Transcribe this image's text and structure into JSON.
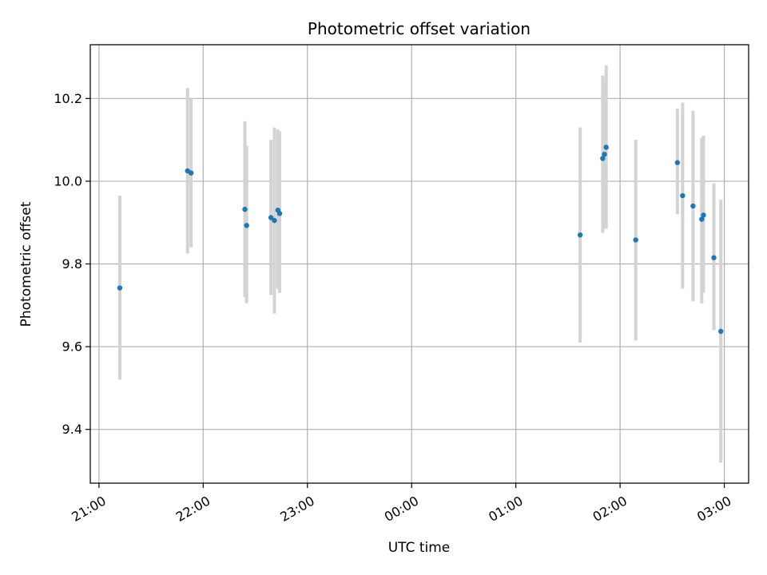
{
  "chart_data": {
    "type": "scatter",
    "title": "Photometric offset variation",
    "xlabel": "UTC time",
    "ylabel": "Photometric offset",
    "grid": true,
    "x_unit": "UTC time (HH:MM)",
    "xlim": [
      "20:55",
      "03:14"
    ],
    "ylim": [
      9.27,
      10.33
    ],
    "xticks": [
      "21:00",
      "22:00",
      "23:00",
      "00:00",
      "01:00",
      "02:00",
      "03:00"
    ],
    "yticks": [
      9.4,
      9.6,
      9.8,
      10.0,
      10.2
    ],
    "colors": {
      "point": "#1f77b4",
      "errorbar": "#d3d3d3",
      "grid": "#b0b0b0"
    },
    "series": [
      {
        "points": [
          {
            "x": "21:12",
            "y": 9.742,
            "low": 9.52,
            "high": 9.965
          },
          {
            "x": "21:51",
            "y": 10.025,
            "low": 9.825,
            "high": 10.225
          },
          {
            "x": "21:53",
            "y": 10.02,
            "low": 9.84,
            "high": 10.2
          },
          {
            "x": "22:24",
            "y": 9.932,
            "low": 9.72,
            "high": 10.145
          },
          {
            "x": "22:25",
            "y": 9.893,
            "low": 9.705,
            "high": 10.085
          },
          {
            "x": "22:39",
            "y": 9.912,
            "low": 9.725,
            "high": 10.1
          },
          {
            "x": "22:41",
            "y": 9.905,
            "low": 9.68,
            "high": 10.13
          },
          {
            "x": "22:43",
            "y": 9.93,
            "low": 9.74,
            "high": 10.125
          },
          {
            "x": "22:44",
            "y": 9.922,
            "low": 9.73,
            "high": 10.12
          },
          {
            "x": "01:37",
            "y": 9.87,
            "low": 9.61,
            "high": 10.13
          },
          {
            "x": "01:50",
            "y": 10.055,
            "low": 9.875,
            "high": 10.255
          },
          {
            "x": "01:51",
            "y": 10.065,
            "low": 9.885,
            "high": 10.24
          },
          {
            "x": "01:52",
            "y": 10.082,
            "low": 9.885,
            "high": 10.28
          },
          {
            "x": "02:09",
            "y": 9.858,
            "low": 9.615,
            "high": 10.1
          },
          {
            "x": "02:33",
            "y": 10.045,
            "low": 9.92,
            "high": 10.175
          },
          {
            "x": "02:36",
            "y": 9.965,
            "low": 9.74,
            "high": 10.19
          },
          {
            "x": "02:42",
            "y": 9.94,
            "low": 9.71,
            "high": 10.17
          },
          {
            "x": "02:47",
            "y": 9.908,
            "low": 9.705,
            "high": 10.105
          },
          {
            "x": "02:48",
            "y": 9.918,
            "low": 9.73,
            "high": 10.11
          },
          {
            "x": "02:54",
            "y": 9.815,
            "low": 9.64,
            "high": 9.995
          },
          {
            "x": "02:58",
            "y": 9.637,
            "low": 9.32,
            "high": 9.955
          }
        ]
      }
    ]
  }
}
